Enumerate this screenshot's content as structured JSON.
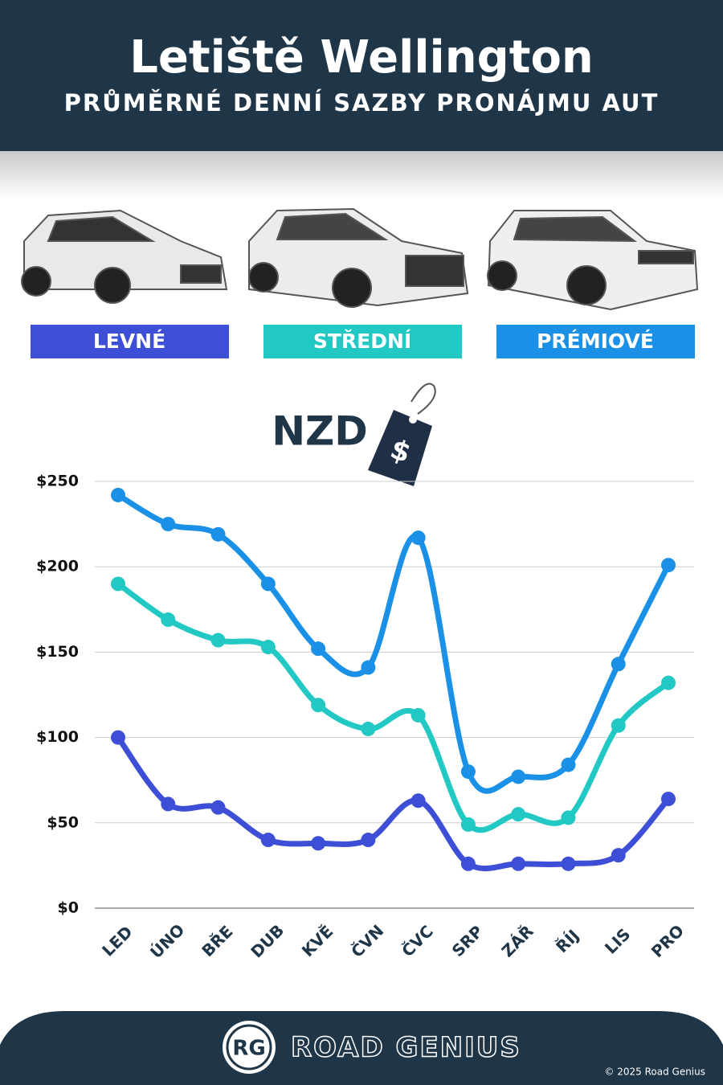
{
  "header": {
    "title": "Letiště Wellington",
    "subtitle": "PRŮMĚRNÉ DENNÍ SAZBY PRONÁJMU AUT"
  },
  "chart_data": {
    "type": "line",
    "unit": "NZD",
    "unit_icon": "$",
    "categories": [
      "LED",
      "ÚNO",
      "BŘE",
      "DUB",
      "KVĚ",
      "ČVN",
      "ČVC",
      "SRP",
      "ZÁŘ",
      "ŘÍJ",
      "LIS",
      "PRO"
    ],
    "series": [
      {
        "name": "LEVNÉ",
        "color": "#3d4fd6",
        "values": [
          100,
          61,
          59,
          40,
          38,
          40,
          63,
          26,
          26,
          26,
          31,
          64
        ]
      },
      {
        "name": "STŘEDNÍ",
        "color": "#22c9c4",
        "values": [
          190,
          169,
          157,
          153,
          119,
          105,
          113,
          49,
          55,
          53,
          107,
          132
        ]
      },
      {
        "name": "PRÉMIOVÉ",
        "color": "#1a91e6",
        "values": [
          242,
          225,
          219,
          190,
          152,
          141,
          217,
          80,
          77,
          84,
          143,
          201
        ]
      }
    ],
    "ylim": [
      0,
      250
    ],
    "yticks": [
      {
        "value": 0,
        "label": "$0"
      },
      {
        "value": 50,
        "label": "$50"
      },
      {
        "value": 100,
        "label": "$100"
      },
      {
        "value": 150,
        "label": "$150"
      },
      {
        "value": 200,
        "label": "$200"
      },
      {
        "value": 250,
        "label": "$250"
      }
    ],
    "grid": true
  },
  "footer": {
    "logo": "RG",
    "brand": "ROAD GENIUS",
    "copyright": "© 2025 Road Genius"
  }
}
